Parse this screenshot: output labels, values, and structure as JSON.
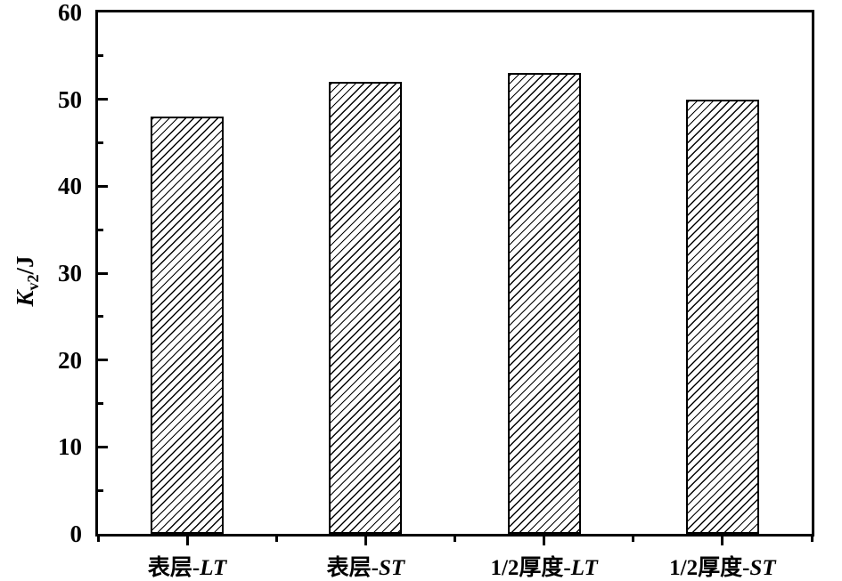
{
  "chart_data": {
    "type": "bar",
    "title": "",
    "categories": [
      {
        "prefix": "表层-",
        "suffix": "LT"
      },
      {
        "prefix": "表层-",
        "suffix": "ST"
      },
      {
        "prefix": "1/2厚度-",
        "suffix": "LT"
      },
      {
        "prefix": "1/2厚度-",
        "suffix": "ST"
      }
    ],
    "category_labels": [
      "表层-LT",
      "表层-ST",
      "1/2厚度-LT",
      "1/2厚度-ST"
    ],
    "values": [
      48,
      52,
      53,
      50
    ],
    "ylabel": {
      "base": "K",
      "subscript": "v2",
      "unit": "/J",
      "text": "Kv2/J"
    },
    "xlabel": "",
    "ylim": [
      0,
      60
    ],
    "yticks": [
      0,
      10,
      20,
      30,
      40,
      50,
      60
    ],
    "y_minor_ticks": [
      5,
      15,
      25,
      35,
      45,
      55
    ],
    "grid": false,
    "legend_position": "none",
    "bar_style": {
      "fill": "diagonal-hatch",
      "hatch_direction": "/",
      "hatch_color": "#000000",
      "fill_background": "#ffffff",
      "border_color": "#000000"
    },
    "colors": {
      "axis": "#000000",
      "text": "#000000",
      "background": "#ffffff"
    }
  }
}
